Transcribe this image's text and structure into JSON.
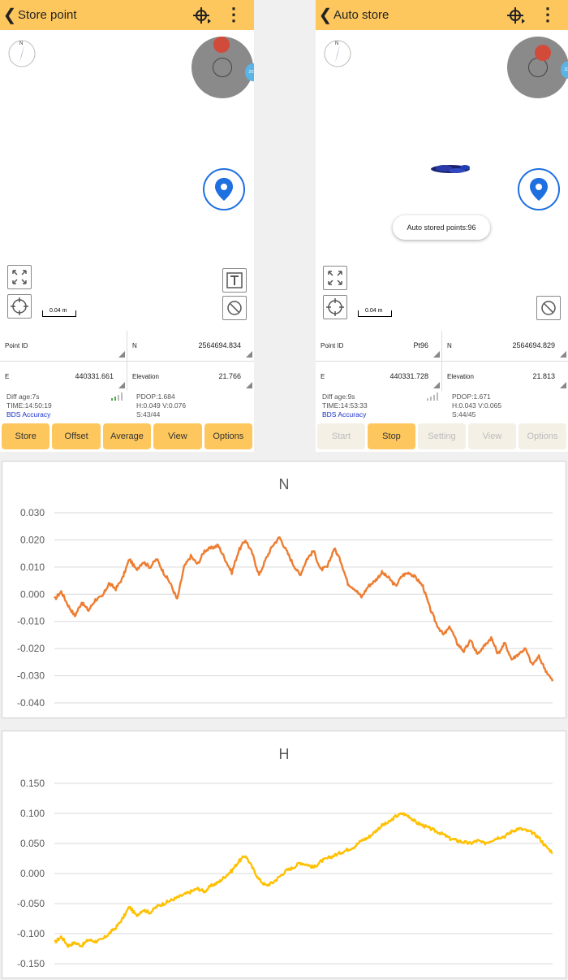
{
  "left_screen": {
    "title": "Store point",
    "fields": [
      {
        "label": "Point ID",
        "value": ""
      },
      {
        "label": "N",
        "value": "2564694.834"
      },
      {
        "label": "E",
        "value": "440331.661"
      },
      {
        "label": "Elevation",
        "value": "21.766"
      }
    ],
    "scale_label": "0.04 m",
    "status": {
      "diff_age": "Diff age:7s",
      "time": "TIME:14:50:19",
      "accuracy": "BDS Accuracy",
      "pdop": "PDOP:1.684",
      "hv": "H:0.049  V:0.076",
      "sats": "S:43/44"
    },
    "buttons": [
      "Store",
      "Offset",
      "Average",
      "View",
      "Options"
    ]
  },
  "right_screen": {
    "title": "Auto store",
    "toast": "Auto stored points:96",
    "fields": [
      {
        "label": "Point ID",
        "value": "Pt96"
      },
      {
        "label": "N",
        "value": "2564694.829"
      },
      {
        "label": "E",
        "value": "440331.728"
      },
      {
        "label": "Elevation",
        "value": "21.813"
      }
    ],
    "scale_label": "0.04 m",
    "status": {
      "diff_age": "Diff age:9s",
      "time": "TIME:14:53:33",
      "accuracy": "BDS Accuracy",
      "pdop": "PDOP:1.671",
      "hv": "H:0.043  V:0.065",
      "sats": "S:44/45"
    },
    "buttons": [
      "Start",
      "Stop",
      "Setting",
      "View",
      "Options"
    ],
    "enabled_button": "Stop"
  },
  "icons": [
    "back-icon",
    "crosshair-target-icon",
    "overflow-menu-icon",
    "compass-icon",
    "location-pin-icon",
    "zoom-extent-icon",
    "center-icon",
    "text-icon",
    "layer-off-icon"
  ],
  "colors": {
    "accent": "#fdc75e",
    "series_n": "#ed7d31",
    "series_h": "#ffc000",
    "bds": "#1a2fc8",
    "loc": "#1e6fe0"
  },
  "chart_data": [
    {
      "type": "line",
      "title": "N",
      "ylim": [
        -0.04,
        0.03
      ],
      "yticks": [
        "0.030",
        "0.020",
        "0.010",
        "0.000",
        "-0.010",
        "-0.020",
        "-0.030",
        "-0.040"
      ],
      "grid": true,
      "series": [
        {
          "color": "#ed7d31",
          "x": [
            0,
            10,
            20,
            30,
            40,
            50,
            60,
            70,
            80,
            90,
            100,
            110,
            120,
            130,
            140,
            150,
            160,
            170,
            180,
            190,
            200,
            210,
            220,
            230,
            240,
            250,
            260,
            270,
            280,
            290,
            300,
            310,
            320,
            330,
            340,
            350,
            360,
            370,
            380,
            390,
            400,
            410,
            420,
            430,
            440,
            450,
            460,
            470,
            480,
            490,
            500,
            510,
            520,
            530,
            540,
            550,
            560,
            570,
            580,
            590,
            600,
            610
          ],
          "y": [
            -0.002,
            0.001,
            -0.004,
            -0.008,
            -0.003,
            -0.006,
            -0.002,
            -0.001,
            0.004,
            0.002,
            0.006,
            0.013,
            0.009,
            0.012,
            0.01,
            0.013,
            0.008,
            0.004,
            -0.002,
            0.01,
            0.014,
            0.011,
            0.016,
            0.017,
            0.018,
            0.013,
            0.008,
            0.016,
            0.02,
            0.015,
            0.007,
            0.013,
            0.018,
            0.021,
            0.016,
            0.011,
            0.007,
            0.013,
            0.016,
            0.009,
            0.01,
            0.017,
            0.012,
            0.004,
            0.002,
            -0.001,
            0.003,
            0.005,
            0.008,
            0.006,
            0.003,
            0.007,
            0.008,
            0.006,
            0.003,
            -0.005,
            -0.011,
            -0.015,
            -0.012,
            -0.018,
            -0.021,
            -0.017
          ]
        },
        {
          "color": "#ed7d31",
          "x": [
            610,
            620,
            630,
            640,
            650,
            660,
            670,
            680,
            690,
            700,
            710,
            720,
            730
          ],
          "y": [
            -0.017,
            -0.022,
            -0.019,
            -0.016,
            -0.022,
            -0.018,
            -0.024,
            -0.022,
            -0.02,
            -0.026,
            -0.023,
            -0.028,
            -0.032
          ]
        }
      ]
    },
    {
      "type": "line",
      "title": "H",
      "ylim": [
        -0.15,
        0.15
      ],
      "yticks": [
        "0.150",
        "0.100",
        "0.050",
        "0.000",
        "-0.050",
        "-0.100",
        "-0.150"
      ],
      "grid": true,
      "series": [
        {
          "color": "#ffc000",
          "x": [
            0,
            10,
            20,
            30,
            40,
            50,
            60,
            70,
            80,
            90,
            100,
            110,
            120,
            130,
            140,
            150,
            160,
            170,
            180,
            190,
            200,
            210,
            220,
            230,
            240,
            250,
            260,
            270,
            280,
            290,
            300,
            310,
            320,
            330,
            340,
            350,
            360,
            370,
            380,
            390,
            400,
            410,
            420,
            430,
            440,
            450,
            460,
            470,
            480,
            490,
            500,
            510,
            520,
            530,
            540,
            550,
            560,
            570,
            580,
            590,
            600,
            610,
            620,
            630,
            640,
            650,
            660,
            670,
            680,
            690,
            700,
            710,
            720,
            730
          ],
          "y": [
            -0.115,
            -0.105,
            -0.12,
            -0.115,
            -0.12,
            -0.11,
            -0.113,
            -0.11,
            -0.1,
            -0.09,
            -0.075,
            -0.055,
            -0.07,
            -0.06,
            -0.065,
            -0.055,
            -0.05,
            -0.045,
            -0.04,
            -0.035,
            -0.03,
            -0.025,
            -0.03,
            -0.02,
            -0.015,
            -0.005,
            0.005,
            0.02,
            0.03,
            0.01,
            -0.01,
            -0.02,
            -0.015,
            -0.005,
            0.005,
            0.01,
            0.018,
            0.015,
            0.01,
            0.02,
            0.025,
            0.03,
            0.035,
            0.04,
            0.045,
            0.055,
            0.06,
            0.07,
            0.08,
            0.085,
            0.095,
            0.1,
            0.095,
            0.085,
            0.08,
            0.075,
            0.07,
            0.065,
            0.058,
            0.055,
            0.052,
            0.05,
            0.055,
            0.05,
            0.055,
            0.06,
            0.062,
            0.07,
            0.075,
            0.072,
            0.068,
            0.06,
            0.045,
            0.035
          ]
        }
      ]
    }
  ]
}
